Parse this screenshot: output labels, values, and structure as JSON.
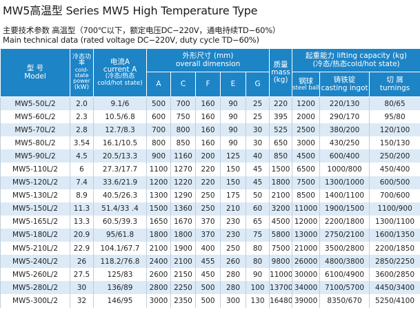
{
  "title": "MW5高温型  Series MW5 High Temperature Type",
  "subtitle_cn": "主要技术参数  高温型（700℃以下，额定电压DC−220V，通电持续TD−60%）",
  "subtitle_en": "Main technical data (rated voltage DC−220V, duty cycle TD−60%)",
  "header": {
    "model_cn": "型  号",
    "model_en": "Model",
    "power_cn": "冷态功率",
    "power_en": "cold-state power",
    "power_unit": "(kW)",
    "current_cn": "电流A",
    "current_en": "current A",
    "current_sub_cn": "(冷态/热态",
    "current_sub_en": "cold/hot state)",
    "dim_cn": "外形尺寸 (mm)",
    "dim_en": "overall dimension",
    "dim_cols": [
      "A",
      "C",
      "F",
      "E",
      "G"
    ],
    "mass_cn": "质量",
    "mass_en": "mass",
    "mass_unit": "(kg)",
    "lift_title": "起重能力 lifting capacity (kg)",
    "lift_sub": "(冷态/热态cold/hot state)",
    "steel_cn": "钢球",
    "steel_en": "steel ball",
    "ingot_cn": "铸铁锭",
    "ingot_en": "casting ingot",
    "turn_cn": "切  屑",
    "turn_en": "turnings"
  },
  "rows": [
    [
      "MW5-50L/2",
      "2.0",
      "9.1/6",
      "500",
      "700",
      "160",
      "90",
      "25",
      "220",
      "1200",
      "220/130",
      "80/65"
    ],
    [
      "MW5-60L/2",
      "2.3",
      "10.5/6.8",
      "600",
      "750",
      "160",
      "90",
      "25",
      "395",
      "2000",
      "290/170",
      "95/80"
    ],
    [
      "MW5-70L/2",
      "2.8",
      "12.7/8.3",
      "700",
      "800",
      "160",
      "90",
      "30",
      "525",
      "2500",
      "380/200",
      "120/100"
    ],
    [
      "MW5-80L/2",
      "3.54",
      "16.1/10.5",
      "800",
      "850",
      "160",
      "90",
      "30",
      "650",
      "3000",
      "430/250",
      "150/130"
    ],
    [
      "MW5-90L/2",
      "4.5",
      "20.5/13.3",
      "900",
      "1160",
      "200",
      "125",
      "40",
      "850",
      "4500",
      "600/400",
      "250/200"
    ],
    [
      "MW5-110L/2",
      "6",
      "27.3/17.7",
      "1100",
      "1270",
      "220",
      "150",
      "45",
      "1500",
      "6500",
      "1000/800",
      "450/400"
    ],
    [
      "MW5-120L/2",
      "7.4",
      "33.6/21.9",
      "1200",
      "1220",
      "220",
      "150",
      "45",
      "1800",
      "7500",
      "1300/1000",
      "600/500"
    ],
    [
      "MW5-130L/2",
      "8.9",
      "40.5/26.3",
      "1300",
      "1290",
      "250",
      "175",
      "50",
      "2100",
      "8500",
      "1400/1100",
      "700/600"
    ],
    [
      "MW5-150L/2",
      "11.3",
      "51.4/33 .4",
      "1500",
      "1360",
      "250",
      "210",
      "60",
      "3200",
      "11000",
      "1900/1500",
      "1100/900"
    ],
    [
      "MW5-165L/2",
      "13.3",
      "60.5/39.3",
      "1650",
      "1670",
      "370",
      "230",
      "65",
      "4500",
      "12000",
      "2200/1800",
      "1300/1100"
    ],
    [
      "MW5-180L/2",
      "20.9",
      "95/61.8",
      "1800",
      "1800",
      "370",
      "230",
      "75",
      "5800",
      "13000",
      "2750/2100",
      "1600/1350"
    ],
    [
      "MW5-210L/2",
      "22.9",
      "104.1/67.7",
      "2100",
      "1900",
      "400",
      "250",
      "80",
      "7500",
      "21000",
      "3500/2800",
      "2200/1850"
    ],
    [
      "MW5-240L/2",
      "26",
      "118.2/76.8",
      "2400",
      "2100",
      "455",
      "260",
      "80",
      "9800",
      "26000",
      "4800/3800",
      "2850/2250"
    ],
    [
      "MW5-260L/2",
      "27.5",
      "125/83",
      "2600",
      "2150",
      "450",
      "280",
      "90",
      "11000",
      "30000",
      "6100/4900",
      "3600/2850"
    ],
    [
      "MW5-280L/2",
      "30",
      "136/89",
      "2800",
      "2250",
      "500",
      "280",
      "100",
      "13700",
      "34000",
      "7100/5700",
      "4450/3400"
    ],
    [
      "MW5-300L/2",
      "32",
      "146/95",
      "3000",
      "2350",
      "500",
      "300",
      "130",
      "16480",
      "39000",
      "8350/670",
      "5250/4100"
    ]
  ]
}
